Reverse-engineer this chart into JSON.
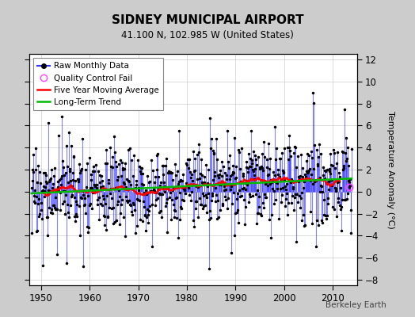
{
  "title": "SIDNEY MUNICIPAL AIRPORT",
  "subtitle": "41.100 N, 102.985 W (United States)",
  "ylabel": "Temperature Anomaly (°C)",
  "watermark": "Berkeley Earth",
  "start_year": 1948,
  "end_year": 2014,
  "ylim": [
    -8.5,
    12.5
  ],
  "yticks": [
    -8,
    -6,
    -4,
    -2,
    0,
    2,
    4,
    6,
    8,
    10,
    12
  ],
  "xticks": [
    1950,
    1960,
    1970,
    1980,
    1990,
    2000,
    2010
  ],
  "raw_color": "#3333FF",
  "moving_avg_color": "#FF0000",
  "trend_color": "#00BB00",
  "qc_color": "#FF44FF",
  "background_color": "#CCCCCC",
  "plot_bg_color": "#FFFFFF",
  "grid_color": "#AAAAAA",
  "stem_alpha": 0.6,
  "stem_linewidth": 0.8,
  "moving_avg_linewidth": 1.8,
  "trend_linewidth": 1.8
}
